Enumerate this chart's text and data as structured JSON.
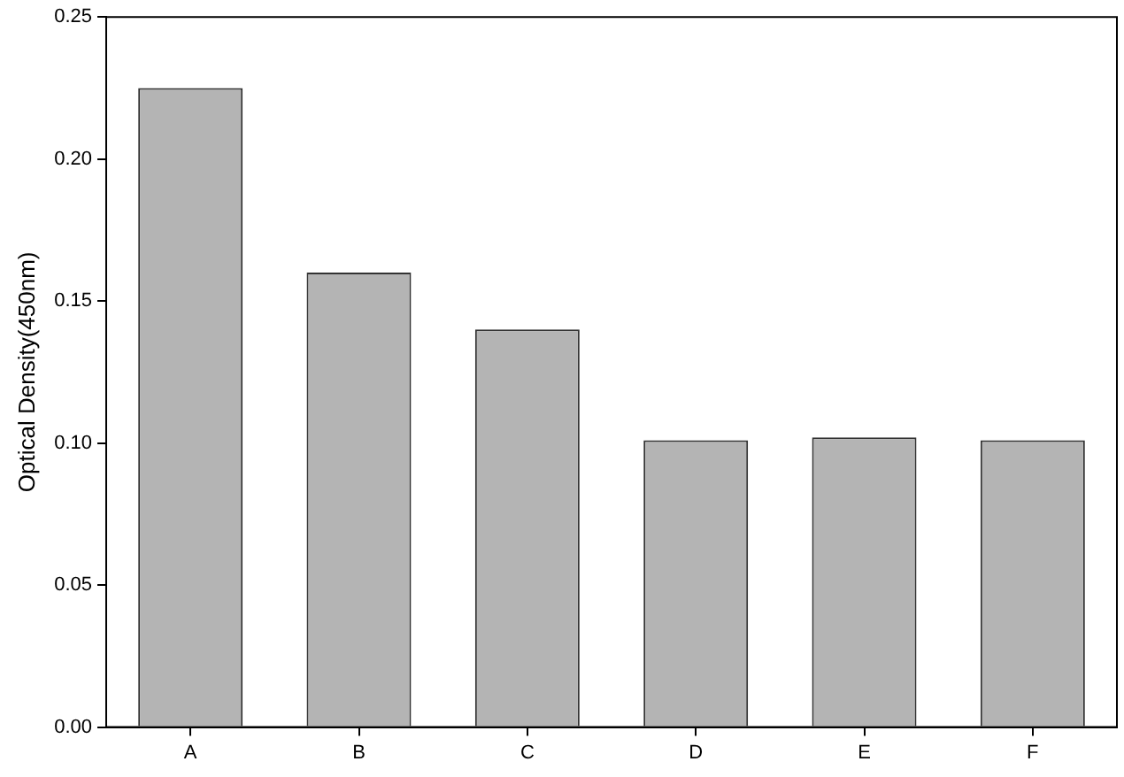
{
  "chart_data": {
    "type": "bar",
    "ylabel": "Optical Density(450nm)",
    "categories": [
      "A",
      "B",
      "C",
      "D",
      "E",
      "F"
    ],
    "values": [
      0.225,
      0.16,
      0.14,
      0.101,
      0.102,
      0.101
    ],
    "color": "#b4b4b4",
    "ylim": [
      0,
      0.25
    ],
    "yticks": [
      {
        "value": 0,
        "label": "0.00"
      },
      {
        "value": 0.05,
        "label": "0.05"
      },
      {
        "value": 0.1,
        "label": "0.10"
      },
      {
        "value": 0.15,
        "label": "0.15"
      },
      {
        "value": 0.2,
        "label": "0.20"
      },
      {
        "value": 0.25,
        "label": "0.25"
      }
    ],
    "grid": false,
    "legend": false
  }
}
